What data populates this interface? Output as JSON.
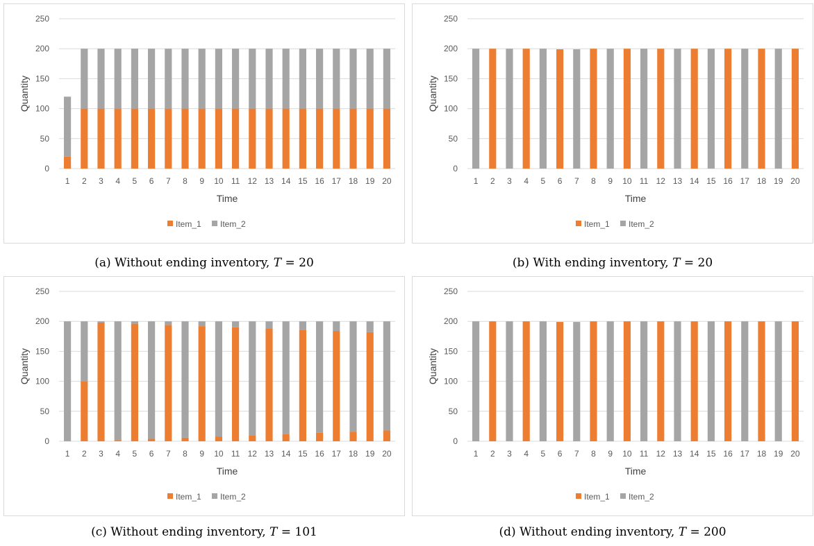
{
  "colors": {
    "item_1": "#ED7D31",
    "item_2": "#A5A5A5",
    "grid": "#D9D9D9"
  },
  "chart_data": [
    {
      "type": "bar",
      "stacked": true,
      "caption_prefix": "(a) Without ending inventory, ",
      "caption_var": "T",
      "caption_eq": " = 20",
      "xlabel": "Time",
      "ylabel": "Quantity",
      "ylim": [
        0,
        250
      ],
      "yticks": [
        0,
        50,
        100,
        150,
        200,
        250
      ],
      "grid": true,
      "legend_position": "bottom",
      "categories": [
        "1",
        "2",
        "3",
        "4",
        "5",
        "6",
        "7",
        "8",
        "9",
        "10",
        "11",
        "12",
        "13",
        "14",
        "15",
        "16",
        "17",
        "18",
        "19",
        "20"
      ],
      "series": [
        {
          "name": "Item_1",
          "values": [
            20,
            100,
            100,
            100,
            100,
            100,
            100,
            100,
            100,
            100,
            100,
            100,
            100,
            100,
            100,
            100,
            100,
            100,
            100,
            100
          ]
        },
        {
          "name": "Item_2",
          "values": [
            100,
            100,
            100,
            100,
            100,
            100,
            100,
            100,
            100,
            100,
            100,
            100,
            100,
            100,
            100,
            100,
            100,
            100,
            100,
            100
          ]
        }
      ]
    },
    {
      "type": "bar",
      "stacked": true,
      "caption_prefix": "(b) With ending inventory, ",
      "caption_var": "T",
      "caption_eq": " = 20",
      "xlabel": "Time",
      "ylabel": "Quantity",
      "ylim": [
        0,
        250
      ],
      "yticks": [
        0,
        50,
        100,
        150,
        200,
        250
      ],
      "grid": true,
      "legend_position": "bottom",
      "categories": [
        "1",
        "2",
        "3",
        "4",
        "5",
        "6",
        "7",
        "8",
        "9",
        "10",
        "11",
        "12",
        "13",
        "14",
        "15",
        "16",
        "17",
        "18",
        "19",
        "20"
      ],
      "series": [
        {
          "name": "Item_1",
          "values": [
            0,
            200,
            0,
            200,
            0,
            199,
            0,
            200,
            0,
            200,
            0,
            200,
            0,
            200,
            0,
            200,
            0,
            200,
            0,
            200
          ]
        },
        {
          "name": "Item_2",
          "values": [
            200,
            0,
            200,
            0,
            200,
            0,
            199,
            0,
            200,
            0,
            200,
            0,
            200,
            0,
            200,
            0,
            200,
            0,
            200,
            0
          ]
        }
      ]
    },
    {
      "type": "bar",
      "stacked": true,
      "caption_prefix": "(c) Without ending inventory, ",
      "caption_var": "T",
      "caption_eq": " = 101",
      "xlabel": "Time",
      "ylabel": "Quantity",
      "ylim": [
        0,
        250
      ],
      "yticks": [
        0,
        50,
        100,
        150,
        200,
        250
      ],
      "grid": true,
      "legend_position": "bottom",
      "categories": [
        "1",
        "2",
        "3",
        "4",
        "5",
        "6",
        "7",
        "8",
        "9",
        "10",
        "11",
        "12",
        "13",
        "14",
        "15",
        "16",
        "17",
        "18",
        "19",
        "20"
      ],
      "series": [
        {
          "name": "Item_1",
          "values": [
            0,
            100,
            198,
            2,
            196,
            4,
            194,
            6,
            192,
            8,
            190,
            10,
            188,
            12,
            186,
            14,
            184,
            16,
            182,
            18
          ]
        },
        {
          "name": "Item_2",
          "values": [
            200,
            100,
            2,
            198,
            4,
            196,
            6,
            194,
            8,
            192,
            10,
            190,
            12,
            188,
            14,
            186,
            16,
            184,
            18,
            182
          ]
        }
      ]
    },
    {
      "type": "bar",
      "stacked": true,
      "caption_prefix": "(d) Without ending inventory, ",
      "caption_var": "T",
      "caption_eq": " = 200",
      "xlabel": "Time",
      "ylabel": "Quantity",
      "ylim": [
        0,
        250
      ],
      "yticks": [
        0,
        50,
        100,
        150,
        200,
        250
      ],
      "grid": true,
      "legend_position": "bottom",
      "categories": [
        "1",
        "2",
        "3",
        "4",
        "5",
        "6",
        "7",
        "8",
        "9",
        "10",
        "11",
        "12",
        "13",
        "14",
        "15",
        "16",
        "17",
        "18",
        "19",
        "20"
      ],
      "series": [
        {
          "name": "Item_1",
          "values": [
            0,
            200,
            0,
            200,
            0,
            199,
            0,
            200,
            0,
            200,
            0,
            200,
            0,
            200,
            0,
            200,
            0,
            200,
            0,
            200
          ]
        },
        {
          "name": "Item_2",
          "values": [
            200,
            0,
            200,
            0,
            200,
            0,
            199,
            0,
            200,
            0,
            200,
            0,
            200,
            0,
            200,
            0,
            200,
            0,
            200,
            0
          ]
        }
      ]
    }
  ]
}
